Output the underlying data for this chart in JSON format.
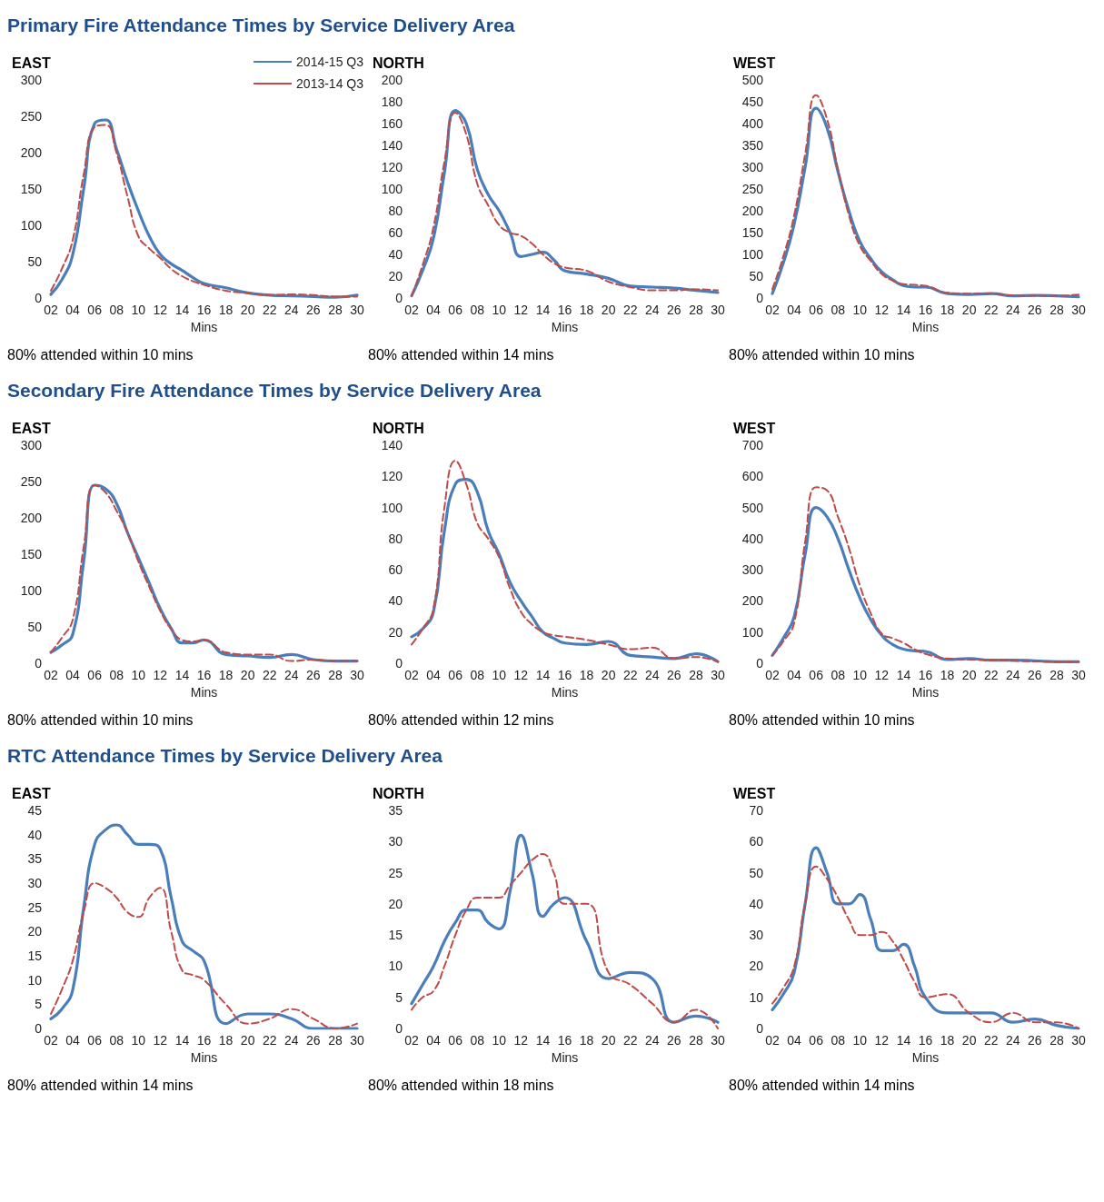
{
  "chart_data": [
    {
      "type": "line",
      "title": "Primary Fire Attendance Times by Service Delivery Area",
      "subtitle": "EAST",
      "xlabel": "Mins",
      "annotations": [
        "80% attended within 10 mins"
      ],
      "legend": "top right",
      "marker": "none",
      "x": [
        2,
        3,
        4,
        5,
        6,
        7,
        8,
        9,
        10,
        11,
        12,
        13,
        14,
        15,
        16,
        18,
        20,
        22,
        24,
        26,
        28,
        30
      ],
      "xlim": [
        2,
        30
      ],
      "xticks": [
        {
          "value": 2,
          "label": "02"
        },
        {
          "value": 4,
          "label": "04"
        },
        {
          "value": 6,
          "label": "06"
        },
        {
          "value": 8,
          "label": "08"
        },
        10,
        12,
        14,
        16,
        18,
        20,
        22,
        24,
        26,
        28,
        30
      ],
      "ylim": [
        0,
        300
      ],
      "yticks": [
        0,
        50,
        100,
        150,
        200,
        250,
        300
      ],
      "series": [
        {
          "name": "2014-15 Q3",
          "color": "#4a7ebb",
          "line_style": "solid",
          "values": [
            5,
            25,
            60,
            150,
            240,
            245,
            205,
            160,
            120,
            85,
            60,
            47,
            38,
            28,
            20,
            14,
            7,
            4,
            3,
            2,
            1,
            4
          ]
        },
        {
          "name": "2013-14 Q3",
          "color": "#be4b48",
          "line_style": "dashed",
          "values": [
            10,
            40,
            80,
            170,
            235,
            238,
            200,
            140,
            85,
            68,
            55,
            40,
            30,
            23,
            18,
            10,
            7,
            4,
            5,
            4,
            2,
            2
          ]
        }
      ]
    },
    {
      "type": "line",
      "subtitle": "NORTH",
      "xlabel": "Mins",
      "annotations": [
        "80% attended within 14 mins"
      ],
      "marker": "none",
      "x": [
        2,
        3,
        4,
        5,
        6,
        7,
        8,
        9,
        10,
        11,
        12,
        13,
        14,
        15,
        16,
        18,
        20,
        22,
        24,
        26,
        28,
        30
      ],
      "xlim": [
        2,
        30
      ],
      "xticks": [
        {
          "value": 2,
          "label": "02"
        },
        {
          "value": 4,
          "label": "04"
        },
        {
          "value": 6,
          "label": "06"
        },
        {
          "value": 8,
          "label": "08"
        },
        10,
        12,
        14,
        16,
        18,
        20,
        22,
        24,
        26,
        28,
        30
      ],
      "ylim": [
        0,
        200
      ],
      "yticks": [
        0,
        20,
        40,
        60,
        80,
        100,
        120,
        140,
        160,
        180,
        200
      ],
      "series": [
        {
          "color": "#4a7ebb",
          "line_style": "solid",
          "values": [
            2,
            25,
            55,
            115,
            172,
            160,
            118,
            95,
            80,
            60,
            38,
            40,
            42,
            35,
            25,
            22,
            18,
            11,
            10,
            9,
            7,
            5
          ]
        },
        {
          "color": "#be4b48",
          "line_style": "dashed",
          "values": [
            2,
            30,
            65,
            125,
            170,
            150,
            105,
            85,
            67,
            60,
            57,
            50,
            40,
            32,
            28,
            25,
            15,
            10,
            7,
            7,
            8,
            7
          ]
        }
      ]
    },
    {
      "type": "line",
      "subtitle": "WEST",
      "xlabel": "Mins",
      "annotations": [
        "80% attended within 10 mins"
      ],
      "marker": "none",
      "x": [
        2,
        3,
        4,
        5,
        6,
        7,
        8,
        9,
        10,
        11,
        12,
        13,
        14,
        15,
        16,
        18,
        20,
        22,
        24,
        26,
        28,
        30
      ],
      "xlim": [
        2,
        30
      ],
      "xticks": [
        {
          "value": 2,
          "label": "02"
        },
        {
          "value": 4,
          "label": "04"
        },
        {
          "value": 6,
          "label": "06"
        },
        {
          "value": 8,
          "label": "08"
        },
        10,
        12,
        14,
        16,
        18,
        20,
        22,
        24,
        26,
        28,
        30
      ],
      "ylim": [
        0,
        500
      ],
      "yticks": [
        0,
        50,
        100,
        150,
        200,
        250,
        300,
        350,
        400,
        450,
        500
      ],
      "series": [
        {
          "color": "#4a7ebb",
          "line_style": "solid",
          "values": [
            10,
            80,
            170,
            300,
            435,
            390,
            290,
            200,
            130,
            90,
            60,
            42,
            28,
            25,
            25,
            10,
            8,
            10,
            5,
            6,
            5,
            3
          ]
        },
        {
          "color": "#be4b48",
          "line_style": "dashed",
          "values": [
            20,
            95,
            190,
            330,
            465,
            410,
            295,
            190,
            120,
            85,
            55,
            40,
            32,
            30,
            28,
            12,
            10,
            10,
            6,
            5,
            5,
            8
          ]
        }
      ]
    },
    {
      "type": "line",
      "title": "Secondary Fire Attendance Times by Service Delivery Area",
      "subtitle": "EAST",
      "xlabel": "Mins",
      "annotations": [
        "80% attended within 10 mins"
      ],
      "marker": "none",
      "x": [
        2,
        3,
        4,
        5,
        6,
        7,
        8,
        9,
        10,
        11,
        12,
        13,
        14,
        15,
        16,
        18,
        20,
        22,
        24,
        26,
        28,
        30
      ],
      "xlim": [
        2,
        30
      ],
      "xticks": [
        {
          "value": 2,
          "label": "02"
        },
        {
          "value": 4,
          "label": "04"
        },
        {
          "value": 6,
          "label": "06"
        },
        {
          "value": 8,
          "label": "08"
        },
        10,
        12,
        14,
        16,
        18,
        20,
        22,
        24,
        26,
        28,
        30
      ],
      "ylim": [
        0,
        300
      ],
      "yticks": [
        0,
        50,
        100,
        150,
        200,
        250,
        300
      ],
      "series": [
        {
          "color": "#4a7ebb",
          "line_style": "solid",
          "values": [
            15,
            25,
            40,
            140,
            245,
            240,
            220,
            180,
            145,
            110,
            75,
            48,
            28,
            28,
            32,
            12,
            10,
            8,
            12,
            5,
            3,
            3
          ]
        },
        {
          "color": "#be4b48",
          "line_style": "dashed",
          "values": [
            15,
            35,
            60,
            160,
            245,
            235,
            210,
            180,
            140,
            105,
            72,
            47,
            32,
            30,
            32,
            15,
            12,
            12,
            3,
            5,
            3,
            3
          ]
        }
      ]
    },
    {
      "type": "line",
      "subtitle": "NORTH",
      "xlabel": "Mins",
      "annotations": [
        "80% attended within 12 mins"
      ],
      "marker": "none",
      "x": [
        2,
        3,
        4,
        5,
        6,
        7,
        8,
        9,
        10,
        11,
        12,
        13,
        14,
        15,
        16,
        18,
        20,
        22,
        24,
        26,
        28,
        30
      ],
      "xlim": [
        2,
        30
      ],
      "xticks": [
        {
          "value": 2,
          "label": "02"
        },
        {
          "value": 4,
          "label": "04"
        },
        {
          "value": 6,
          "label": "06"
        },
        {
          "value": 8,
          "label": "08"
        },
        10,
        12,
        14,
        16,
        18,
        20,
        22,
        24,
        26,
        28,
        30
      ],
      "ylim": [
        0,
        140
      ],
      "yticks": [
        0,
        20,
        40,
        60,
        80,
        100,
        120,
        140
      ],
      "series": [
        {
          "color": "#4a7ebb",
          "line_style": "solid",
          "values": [
            17,
            22,
            33,
            85,
            115,
            118,
            110,
            85,
            70,
            52,
            40,
            30,
            20,
            16,
            13,
            12,
            14,
            5,
            4,
            3,
            6,
            1
          ]
        },
        {
          "color": "#be4b48",
          "line_style": "dashed",
          "values": [
            12,
            22,
            35,
            100,
            130,
            115,
            90,
            80,
            68,
            48,
            33,
            25,
            20,
            18,
            17,
            15,
            12,
            9,
            10,
            3,
            4,
            1
          ]
        }
      ]
    },
    {
      "type": "line",
      "subtitle": "WEST",
      "xlabel": "Mins",
      "annotations": [
        "80% attended within 10 mins"
      ],
      "marker": "none",
      "x": [
        2,
        3,
        4,
        5,
        6,
        7,
        8,
        9,
        10,
        11,
        12,
        13,
        14,
        15,
        16,
        18,
        20,
        22,
        24,
        26,
        28,
        30
      ],
      "xlim": [
        2,
        30
      ],
      "xticks": [
        {
          "value": 2,
          "label": "02"
        },
        {
          "value": 4,
          "label": "04"
        },
        {
          "value": 6,
          "label": "06"
        },
        {
          "value": 8,
          "label": "08"
        },
        10,
        12,
        14,
        16,
        18,
        20,
        22,
        24,
        26,
        28,
        30
      ],
      "ylim": [
        0,
        700
      ],
      "yticks": [
        0,
        100,
        200,
        300,
        400,
        500,
        600,
        700
      ],
      "series": [
        {
          "color": "#4a7ebb",
          "line_style": "solid",
          "values": [
            25,
            80,
            150,
            350,
            500,
            470,
            400,
            300,
            210,
            140,
            90,
            60,
            45,
            40,
            38,
            12,
            15,
            10,
            10,
            8,
            5,
            5
          ]
        },
        {
          "color": "#be4b48",
          "line_style": "dashed",
          "values": [
            25,
            70,
            130,
            390,
            565,
            555,
            470,
            370,
            250,
            160,
            95,
            80,
            65,
            45,
            30,
            15,
            12,
            10,
            8,
            6,
            5,
            5
          ]
        }
      ]
    },
    {
      "type": "line",
      "title": "RTC Attendance Times by Service Delivery Area",
      "subtitle": "EAST",
      "xlabel": "Mins",
      "annotations": [
        "80% attended within 14 mins"
      ],
      "marker": "none",
      "x": [
        2,
        3,
        4,
        5,
        6,
        7,
        8,
        9,
        10,
        11,
        12,
        13,
        14,
        15,
        16,
        18,
        20,
        22,
        24,
        26,
        28,
        30
      ],
      "xlim": [
        2,
        30
      ],
      "xticks": [
        {
          "value": 2,
          "label": "02"
        },
        {
          "value": 4,
          "label": "04"
        },
        {
          "value": 6,
          "label": "06"
        },
        {
          "value": 8,
          "label": "08"
        },
        10,
        12,
        14,
        16,
        18,
        20,
        22,
        24,
        26,
        28,
        30
      ],
      "ylim": [
        0,
        45
      ],
      "yticks": [
        0,
        5,
        10,
        15,
        20,
        25,
        30,
        35,
        40,
        45
      ],
      "series": [
        {
          "color": "#4a7ebb",
          "line_style": "solid",
          "values": [
            2,
            4,
            8,
            25,
            38,
            41,
            42,
            40,
            38,
            38,
            37,
            27,
            18,
            16,
            14,
            1,
            3,
            3,
            2,
            0,
            0,
            0
          ]
        },
        {
          "color": "#be4b48",
          "line_style": "dashed",
          "values": [
            3,
            8,
            14,
            24,
            30,
            29,
            27,
            24,
            23,
            27,
            29,
            20,
            12,
            11,
            10,
            5,
            1,
            2,
            4,
            2,
            0,
            1
          ]
        }
      ]
    },
    {
      "type": "line",
      "subtitle": "NORTH",
      "xlabel": "Mins",
      "annotations": [
        "80% attended within 18 mins"
      ],
      "marker": "none",
      "x": [
        2,
        3,
        4,
        5,
        6,
        7,
        8,
        9,
        10,
        11,
        12,
        13,
        14,
        15,
        16,
        18,
        20,
        22,
        24,
        26,
        28,
        30
      ],
      "xlim": [
        2,
        30
      ],
      "xticks": [
        {
          "value": 2,
          "label": "02"
        },
        {
          "value": 4,
          "label": "04"
        },
        {
          "value": 6,
          "label": "06"
        },
        {
          "value": 8,
          "label": "08"
        },
        10,
        12,
        14,
        16,
        18,
        20,
        22,
        24,
        26,
        28,
        30
      ],
      "ylim": [
        0,
        35
      ],
      "yticks": [
        0,
        5,
        10,
        15,
        20,
        25,
        30,
        35
      ],
      "series": [
        {
          "color": "#4a7ebb",
          "line_style": "solid",
          "values": [
            4,
            7,
            10,
            14,
            17,
            19,
            19,
            17,
            16,
            22,
            31,
            25,
            18,
            20,
            21,
            14,
            8,
            9,
            8,
            1,
            2,
            1
          ]
        },
        {
          "color": "#be4b48",
          "line_style": "dashed",
          "values": [
            3,
            5,
            6,
            10,
            15,
            19,
            21,
            21,
            21,
            23,
            25,
            27,
            28,
            25,
            20,
            20,
            9,
            7,
            4,
            1,
            3,
            0
          ]
        }
      ]
    },
    {
      "type": "line",
      "subtitle": "WEST",
      "xlabel": "Mins",
      "annotations": [
        "80% attended within 14 mins"
      ],
      "marker": "none",
      "x": [
        2,
        3,
        4,
        5,
        6,
        7,
        8,
        9,
        10,
        11,
        12,
        13,
        14,
        15,
        16,
        18,
        20,
        22,
        24,
        26,
        28,
        30
      ],
      "xlim": [
        2,
        30
      ],
      "xticks": [
        {
          "value": 2,
          "label": "02"
        },
        {
          "value": 4,
          "label": "04"
        },
        {
          "value": 6,
          "label": "06"
        },
        {
          "value": 8,
          "label": "08"
        },
        10,
        12,
        14,
        16,
        18,
        20,
        22,
        24,
        26,
        28,
        30
      ],
      "ylim": [
        0,
        70
      ],
      "yticks": [
        0,
        10,
        20,
        30,
        40,
        50,
        60,
        70
      ],
      "series": [
        {
          "color": "#4a7ebb",
          "line_style": "solid",
          "values": [
            6,
            11,
            18,
            40,
            58,
            50,
            40,
            40,
            43,
            35,
            25,
            25,
            27,
            20,
            10,
            5,
            5,
            5,
            2,
            3,
            1,
            0
          ]
        },
        {
          "color": "#be4b48",
          "line_style": "dashed",
          "values": [
            8,
            13,
            20,
            40,
            52,
            48,
            42,
            35,
            30,
            30,
            31,
            28,
            22,
            15,
            10,
            11,
            5,
            2,
            5,
            2,
            2,
            0
          ]
        }
      ]
    }
  ]
}
